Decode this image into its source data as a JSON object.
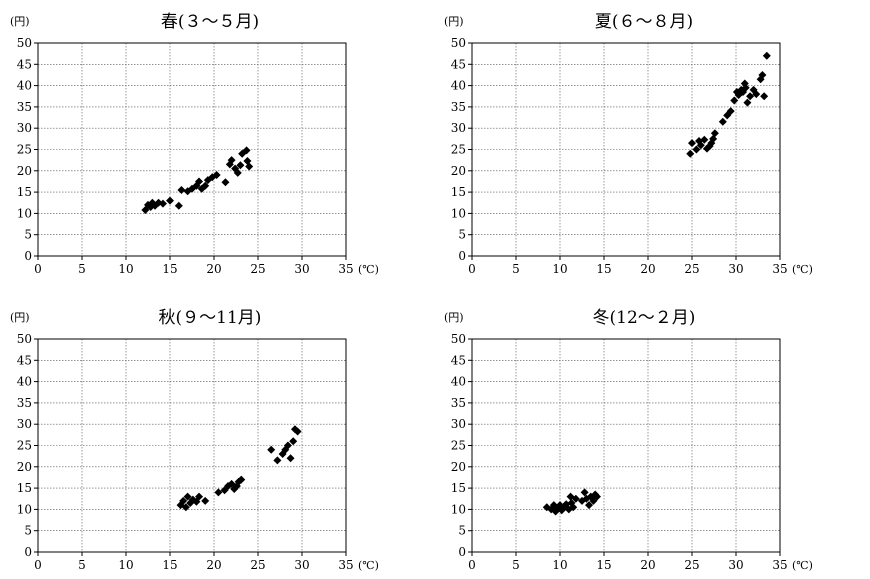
{
  "chart_data": [
    {
      "type": "scatter",
      "title": "春(３～５月)",
      "ylabel": "(円)",
      "xlabel": "(℃)",
      "xlim": [
        0,
        35
      ],
      "ylim": [
        0,
        50
      ],
      "xticks": [
        "0",
        "5",
        "10",
        "15",
        "20",
        "25",
        "30",
        "35"
      ],
      "yticks": [
        "0",
        "5",
        "10",
        "15",
        "20",
        "25",
        "30",
        "35",
        "40",
        "45",
        "50"
      ],
      "grid": true,
      "marker": "diamond",
      "points": [
        [
          12.2,
          10.8
        ],
        [
          12.5,
          12.0
        ],
        [
          12.8,
          11.5
        ],
        [
          13.0,
          12.5
        ],
        [
          13.3,
          11.8
        ],
        [
          13.7,
          12.5
        ],
        [
          14.2,
          12.3
        ],
        [
          15.0,
          13.0
        ],
        [
          16.0,
          11.8
        ],
        [
          16.3,
          15.5
        ],
        [
          17.0,
          15.2
        ],
        [
          17.5,
          15.8
        ],
        [
          18.0,
          16.5
        ],
        [
          18.3,
          17.5
        ],
        [
          18.6,
          15.8
        ],
        [
          19.0,
          16.5
        ],
        [
          19.3,
          17.8
        ],
        [
          19.8,
          18.5
        ],
        [
          20.3,
          19.0
        ],
        [
          21.3,
          17.3
        ],
        [
          21.8,
          21.5
        ],
        [
          22.0,
          22.5
        ],
        [
          22.4,
          20.5
        ],
        [
          22.7,
          19.5
        ],
        [
          23.0,
          21.3
        ],
        [
          23.2,
          24.0
        ],
        [
          23.7,
          24.8
        ],
        [
          23.8,
          22.3
        ],
        [
          24.0,
          21.0
        ]
      ]
    },
    {
      "type": "scatter",
      "title": "夏(６～８月)",
      "ylabel": "(円)",
      "xlabel": "(℃)",
      "xlim": [
        0,
        35
      ],
      "ylim": [
        0,
        50
      ],
      "xticks": [
        "0",
        "5",
        "10",
        "15",
        "20",
        "25",
        "30",
        "35"
      ],
      "yticks": [
        "0",
        "5",
        "10",
        "15",
        "20",
        "25",
        "30",
        "35",
        "40",
        "45",
        "50"
      ],
      "grid": true,
      "marker": "diamond",
      "points": [
        [
          24.8,
          24.0
        ],
        [
          25.0,
          26.5
        ],
        [
          25.5,
          25.0
        ],
        [
          25.8,
          27.0
        ],
        [
          26.0,
          26.0
        ],
        [
          26.4,
          27.3
        ],
        [
          26.7,
          25.2
        ],
        [
          27.0,
          25.8
        ],
        [
          27.2,
          26.5
        ],
        [
          27.4,
          27.5
        ],
        [
          27.6,
          28.8
        ],
        [
          28.5,
          31.5
        ],
        [
          29.0,
          33.0
        ],
        [
          29.4,
          34.0
        ],
        [
          29.8,
          36.5
        ],
        [
          30.1,
          38.5
        ],
        [
          30.3,
          37.8
        ],
        [
          30.6,
          39.0
        ],
        [
          30.8,
          38.5
        ],
        [
          31.0,
          40.5
        ],
        [
          31.1,
          39.5
        ],
        [
          31.3,
          36.0
        ],
        [
          31.6,
          37.5
        ],
        [
          32.0,
          39.0
        ],
        [
          32.3,
          38.0
        ],
        [
          32.8,
          41.5
        ],
        [
          33.0,
          42.5
        ],
        [
          33.2,
          37.5
        ],
        [
          33.5,
          47.0
        ]
      ]
    },
    {
      "type": "scatter",
      "title": "秋(９～11月)",
      "ylabel": "(円)",
      "xlabel": "(℃)",
      "xlim": [
        0,
        35
      ],
      "ylim": [
        0,
        50
      ],
      "xticks": [
        "0",
        "5",
        "10",
        "15",
        "20",
        "25",
        "30",
        "35"
      ],
      "yticks": [
        "0",
        "5",
        "10",
        "15",
        "20",
        "25",
        "30",
        "35",
        "40",
        "45",
        "50"
      ],
      "grid": true,
      "marker": "diamond",
      "points": [
        [
          16.2,
          11.0
        ],
        [
          16.5,
          12.0
        ],
        [
          16.8,
          10.5
        ],
        [
          17.0,
          13.0
        ],
        [
          17.3,
          11.5
        ],
        [
          17.6,
          12.3
        ],
        [
          18.0,
          11.8
        ],
        [
          18.3,
          13.0
        ],
        [
          19.0,
          12.0
        ],
        [
          20.5,
          14.0
        ],
        [
          21.2,
          14.5
        ],
        [
          21.6,
          15.5
        ],
        [
          22.0,
          16.0
        ],
        [
          22.3,
          14.8
        ],
        [
          22.6,
          15.5
        ],
        [
          22.8,
          16.5
        ],
        [
          23.1,
          17.0
        ],
        [
          26.5,
          24.0
        ],
        [
          27.2,
          21.5
        ],
        [
          27.8,
          23.0
        ],
        [
          28.1,
          24.0
        ],
        [
          28.4,
          25.0
        ],
        [
          28.7,
          22.0
        ],
        [
          29.0,
          26.0
        ],
        [
          29.2,
          28.8
        ],
        [
          29.5,
          28.3
        ]
      ]
    },
    {
      "type": "scatter",
      "title": "冬(12～２月)",
      "ylabel": "(円)",
      "xlabel": "(℃)",
      "xlim": [
        0,
        35
      ],
      "ylim": [
        0,
        50
      ],
      "xticks": [
        "0",
        "5",
        "10",
        "15",
        "20",
        "25",
        "30",
        "35"
      ],
      "yticks": [
        "0",
        "5",
        "10",
        "15",
        "20",
        "25",
        "30",
        "35",
        "40",
        "45",
        "50"
      ],
      "grid": true,
      "marker": "diamond",
      "points": [
        [
          8.5,
          10.5
        ],
        [
          9.0,
          10.0
        ],
        [
          9.3,
          11.0
        ],
        [
          9.5,
          9.5
        ],
        [
          9.8,
          10.2
        ],
        [
          10.0,
          11.0
        ],
        [
          10.2,
          9.8
        ],
        [
          10.5,
          10.5
        ],
        [
          10.7,
          11.2
        ],
        [
          11.0,
          10.0
        ],
        [
          11.3,
          11.5
        ],
        [
          11.5,
          10.5
        ],
        [
          11.2,
          13.0
        ],
        [
          11.8,
          12.5
        ],
        [
          12.5,
          12.0
        ],
        [
          12.8,
          14.0
        ],
        [
          13.0,
          12.5
        ],
        [
          13.3,
          11.0
        ],
        [
          13.5,
          13.0
        ],
        [
          13.8,
          12.0
        ],
        [
          14.0,
          13.5
        ],
        [
          14.2,
          13.0
        ]
      ]
    }
  ]
}
